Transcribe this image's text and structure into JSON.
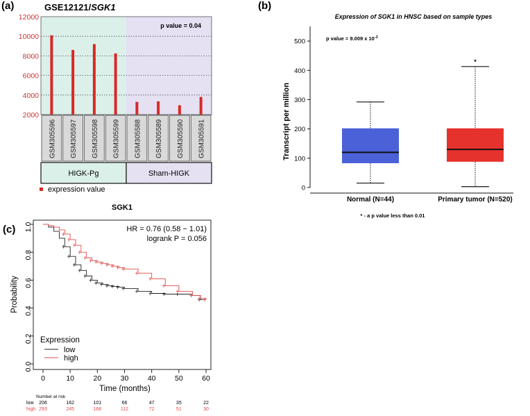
{
  "panels": {
    "a": "(a)",
    "b": "(b)",
    "c": "(c)"
  },
  "chart_data": [
    {
      "id": "a",
      "type": "bar",
      "title_prefix": "GSE12121/",
      "title_gene": "SGK1",
      "ylim": [
        2000,
        12000
      ],
      "yticks": [
        2000,
        4000,
        6000,
        8000,
        10000,
        12000
      ],
      "categories": [
        "GSM305596",
        "GSM305597",
        "GSM305598",
        "GSM305599",
        "GSM305588",
        "GSM305589",
        "GSM305590",
        "GSM305591"
      ],
      "values": [
        10100,
        8600,
        9200,
        8250,
        3300,
        3350,
        2950,
        3800
      ],
      "groups": [
        {
          "name": "HIGK-Pg",
          "count": 4,
          "color": "#dcf0ea"
        },
        {
          "name": "Sham-HIGK",
          "count": 4,
          "color": "#e6e0f3"
        }
      ],
      "pvalue": "p value = 0.04",
      "legend": "expression value",
      "bar_color": "#d62a27"
    },
    {
      "id": "b",
      "type": "box",
      "title": "Expression of SGK1 in HNSC based on sample types",
      "ylabel": "Transcript per million",
      "ylim": [
        0,
        550
      ],
      "yticks": [
        0,
        100,
        200,
        300,
        400,
        500
      ],
      "pvalue_text": "p value = 9.009 x 10",
      "pvalue_exp": "-3",
      "boxes": [
        {
          "name": "Normal (N=44)",
          "min": 15,
          "q1": 83,
          "median": 120,
          "q3": 202,
          "max": 292,
          "outliers": [],
          "color": "#4b61d8"
        },
        {
          "name": "Primary tumor (N=520)",
          "min": 3,
          "q1": 88,
          "median": 130,
          "q3": 202,
          "max": 413,
          "outliers": [],
          "color": "#e6322c"
        }
      ],
      "star": "*",
      "footnote": "* - a p value less than 0.01"
    },
    {
      "id": "c",
      "type": "line",
      "title": "SGK1",
      "xlabel": "Time (months)",
      "ylabel": "Probability",
      "xlim": [
        0,
        62
      ],
      "ylim": [
        0,
        1.0
      ],
      "xticks": [
        0,
        10,
        20,
        30,
        40,
        50,
        60
      ],
      "yticks": [
        0.0,
        0.2,
        0.4,
        0.6,
        0.8,
        1.0
      ],
      "hr": "HR = 0.76 (0.58 − 1.01)",
      "logrank": "logrank P = 0.056",
      "legend_title": "Expression",
      "series": [
        {
          "name": "low",
          "color": "#222222",
          "x": [
            0,
            2,
            4,
            6,
            8,
            10,
            12,
            14,
            16,
            18,
            20,
            22,
            24,
            26,
            28,
            30,
            35,
            40,
            45,
            50,
            55,
            58,
            60
          ],
          "y": [
            1.0,
            0.98,
            0.95,
            0.9,
            0.84,
            0.77,
            0.71,
            0.67,
            0.63,
            0.6,
            0.58,
            0.57,
            0.56,
            0.555,
            0.55,
            0.54,
            0.52,
            0.505,
            0.5,
            0.5,
            0.49,
            0.46,
            0.46
          ]
        },
        {
          "name": "high",
          "color": "#e04a4a",
          "x": [
            0,
            2,
            4,
            6,
            8,
            10,
            12,
            14,
            16,
            18,
            20,
            22,
            24,
            26,
            28,
            30,
            35,
            40,
            45,
            50,
            55,
            58,
            60
          ],
          "y": [
            1.0,
            0.99,
            0.98,
            0.96,
            0.93,
            0.89,
            0.85,
            0.8,
            0.76,
            0.74,
            0.73,
            0.72,
            0.71,
            0.7,
            0.69,
            0.68,
            0.65,
            0.61,
            0.56,
            0.52,
            0.49,
            0.47,
            0.46
          ]
        }
      ],
      "risk_table": {
        "title": "Number at risk",
        "rows": [
          {
            "label": "low",
            "color": "#000000",
            "values": [
              206,
              162,
              101,
              66,
              47,
              35,
              22
            ]
          },
          {
            "label": "high",
            "color": "#e04a4a",
            "values": [
              293,
              245,
              168,
              112,
              72,
              51,
              30
            ]
          }
        ]
      }
    }
  ]
}
